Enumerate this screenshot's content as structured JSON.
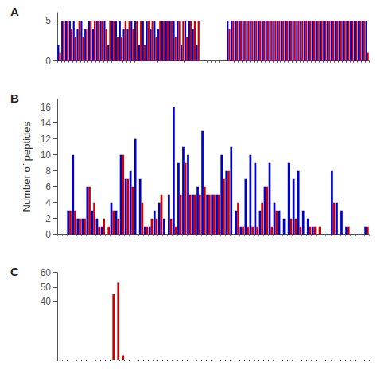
{
  "chart_data": [
    {
      "type": "bar",
      "title": "A",
      "categories": [
        null,
        null,
        null,
        null,
        null,
        null,
        null,
        null,
        null,
        null,
        null,
        null,
        null,
        null,
        null,
        null,
        null,
        null,
        null,
        null,
        null,
        null,
        null,
        null,
        null,
        null,
        null,
        null,
        null,
        null,
        null,
        null,
        null,
        null,
        null,
        null,
        null,
        null,
        null,
        null,
        null,
        null,
        null,
        null,
        null,
        null,
        null,
        null,
        null,
        null,
        null,
        null,
        null,
        null,
        null,
        null,
        null,
        null,
        null,
        null,
        null,
        null,
        null,
        null,
        null,
        null,
        null,
        null,
        null,
        null,
        null,
        null,
        null,
        null,
        null,
        null,
        null,
        null,
        null,
        null,
        null
      ],
      "series": [
        {
          "color": "#0000cc",
          "values": [
            2,
            5,
            5,
            5,
            5,
            4,
            5,
            4,
            5,
            4,
            5,
            5,
            5,
            2,
            5,
            5,
            5,
            4,
            4,
            5,
            5,
            2,
            5,
            5,
            4,
            5,
            4,
            5,
            5,
            5,
            5,
            5,
            2,
            5,
            5,
            4,
            2,
            0,
            0,
            0,
            0,
            0,
            0,
            0,
            5,
            5,
            5,
            5,
            5,
            5,
            5,
            5,
            5,
            5,
            5,
            5,
            5,
            5,
            5,
            5,
            5,
            5,
            5,
            5,
            5,
            5,
            5,
            5,
            5,
            5,
            5,
            5,
            5,
            5,
            5,
            5,
            5,
            5,
            5,
            5,
            5
          ]
        },
        {
          "color": "#cc0000",
          "values": [
            1,
            5,
            5,
            4,
            3,
            5,
            3,
            4,
            5,
            5,
            5,
            5,
            4,
            5,
            5,
            3,
            3,
            5,
            5,
            4,
            5,
            5,
            2,
            5,
            5,
            3,
            5,
            5,
            5,
            5,
            3,
            5,
            5,
            3,
            5,
            5,
            5,
            0,
            0,
            0,
            0,
            0,
            0,
            0,
            4,
            5,
            5,
            5,
            5,
            5,
            5,
            5,
            5,
            5,
            5,
            5,
            5,
            5,
            5,
            5,
            5,
            5,
            5,
            5,
            5,
            5,
            5,
            5,
            5,
            5,
            5,
            5,
            5,
            5,
            5,
            5,
            5,
            5,
            5,
            5,
            1
          ]
        }
      ],
      "ylim": [
        0,
        6
      ],
      "yticks": [
        0,
        5
      ],
      "grid": false,
      "tick_labels": "y"
    },
    {
      "type": "bar",
      "title": "B",
      "ylabel": "Number of peptides",
      "categories": [
        null,
        null,
        null,
        null,
        null,
        null,
        null,
        null,
        null,
        null,
        null,
        null,
        null,
        null,
        null,
        null,
        null,
        null,
        null,
        null,
        null,
        null,
        null,
        null,
        null,
        null,
        null,
        null,
        null,
        null,
        null,
        null,
        null,
        null,
        null,
        null,
        null,
        null,
        null,
        null,
        null,
        null,
        null,
        null,
        null,
        null,
        null,
        null,
        null,
        null,
        null,
        null,
        null,
        null,
        null,
        null,
        null,
        null,
        null,
        null,
        null,
        null,
        null,
        null,
        null
      ],
      "series": [
        {
          "color": "#0000cc",
          "values": [
            0,
            0,
            3,
            10,
            2,
            2,
            6,
            3,
            2,
            1,
            0,
            4,
            3,
            10,
            7,
            8,
            12,
            7,
            1,
            1,
            3,
            4,
            2,
            5,
            16,
            9,
            11,
            10,
            5,
            6,
            13,
            5,
            5,
            5,
            10,
            8,
            11,
            3,
            1,
            7,
            10,
            9,
            3,
            6,
            9,
            4,
            3,
            2,
            9,
            7,
            8,
            3,
            2,
            1,
            0,
            0,
            0,
            8,
            4,
            3,
            1,
            0,
            0,
            0,
            1
          ]
        },
        {
          "color": "#cc0000",
          "values": [
            0,
            0,
            3,
            3,
            2,
            2,
            6,
            4,
            1,
            2,
            1,
            3,
            2,
            10,
            7,
            6,
            0,
            4,
            1,
            2,
            2,
            5,
            0,
            2,
            1,
            5,
            9,
            5,
            5,
            5,
            6,
            5,
            5,
            5,
            7,
            8,
            0,
            4,
            1,
            1,
            1,
            1,
            4,
            6,
            1,
            3,
            0,
            0,
            2,
            2,
            1,
            0,
            1,
            1,
            1,
            0,
            0,
            4,
            0,
            0,
            1,
            0,
            0,
            0,
            1
          ]
        }
      ],
      "ylim": [
        0,
        17
      ],
      "yticks": [
        0,
        2,
        4,
        6,
        8,
        10,
        12,
        14,
        16
      ],
      "grid": false,
      "tick_labels": "y"
    },
    {
      "type": "bar",
      "title": "C",
      "categories": [
        null,
        null,
        null,
        null,
        null,
        null,
        null,
        null,
        null,
        null,
        null,
        null,
        null,
        null,
        null,
        null,
        null,
        null,
        null,
        null,
        null,
        null,
        null,
        null,
        null,
        null,
        null,
        null,
        null,
        null,
        null,
        null,
        null,
        null,
        null,
        null,
        null,
        null,
        null,
        null,
        null,
        null,
        null,
        null,
        null,
        null,
        null,
        null,
        null,
        null,
        null,
        null,
        null,
        null,
        null,
        null,
        null,
        null,
        null,
        null,
        null,
        null,
        null,
        null,
        null
      ],
      "series": [
        {
          "color": "#0000cc",
          "values": [
            0,
            0,
            0,
            0,
            0,
            0,
            0,
            0,
            0,
            0,
            0,
            0,
            0,
            0,
            0,
            0,
            0,
            0,
            0,
            0,
            0,
            0,
            0,
            0,
            0,
            0,
            0,
            0,
            0,
            0,
            0,
            0,
            0,
            0,
            0,
            0,
            0,
            0,
            0,
            0,
            0,
            0,
            0,
            0,
            0,
            0,
            0,
            0,
            0,
            0,
            0,
            0,
            0,
            0,
            0,
            0,
            0,
            0,
            0,
            0,
            0,
            0,
            0,
            0,
            0
          ]
        },
        {
          "color": "#cc0000",
          "values": [
            0,
            0,
            0,
            0,
            0,
            0,
            0,
            0,
            0,
            0,
            0,
            45,
            53,
            3,
            0,
            0,
            0,
            0,
            0,
            0,
            0,
            0,
            0,
            0,
            0,
            0,
            0,
            0,
            0,
            0,
            0,
            0,
            0,
            0,
            0,
            0,
            0,
            0,
            0,
            0,
            0,
            0,
            0,
            0,
            0,
            0,
            0,
            0,
            0,
            0,
            0,
            0,
            0,
            0,
            0,
            0,
            0,
            0,
            0,
            0,
            0,
            0,
            0,
            0,
            0
          ]
        }
      ],
      "ylim": [
        0,
        60
      ],
      "yticks": [
        40,
        50,
        60
      ],
      "grid": false,
      "tick_labels": "y"
    }
  ]
}
